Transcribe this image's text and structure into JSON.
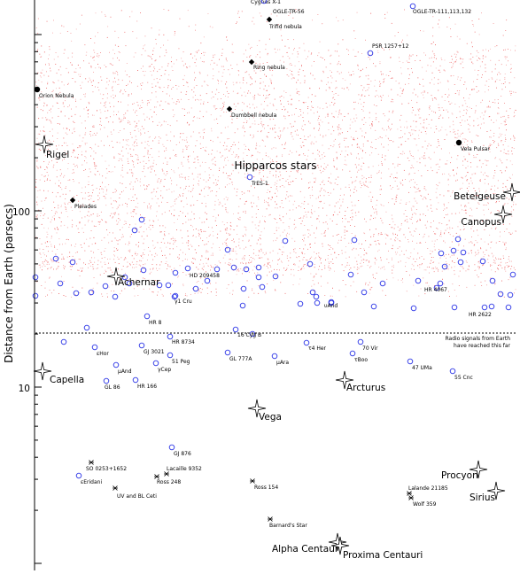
{
  "chart_data": {
    "type": "scatter",
    "ylabel": "Distance from Earth (parsecs)",
    "yscale": "log",
    "y_tick_labels": [
      "10",
      "100"
    ],
    "background_field_label": "Hipparcos stars",
    "threshold_note_line1": "Radio signals from Earth",
    "threshold_note_line2": "have reached this far",
    "threshold_value": 20,
    "objects": [
      {
        "name": "Cygnus X-1",
        "marker": "circle",
        "distance": 2000
      },
      {
        "name": "OGLE-TR-56",
        "marker": "circle",
        "distance": 1500
      },
      {
        "name": "OGLE-TR-111,113,132",
        "marker": "circle",
        "distance": 1500
      },
      {
        "name": "Trifid nebula",
        "marker": "diamond",
        "distance": 1600
      },
      {
        "name": "PSR 1257+12",
        "marker": "circle",
        "distance": 1000
      },
      {
        "name": "Ring nebula",
        "marker": "diamond",
        "distance": 700
      },
      {
        "name": "Orion Nebula",
        "marker": "dot",
        "distance": 450
      },
      {
        "name": "Dumbbell nebula",
        "marker": "diamond",
        "distance": 380
      },
      {
        "name": "Vela Pulsar",
        "marker": "dot",
        "distance": 250
      },
      {
        "name": "Rigel",
        "marker": "star",
        "distance": 250
      },
      {
        "name": "TrES-1",
        "marker": "circle",
        "distance": 150
      },
      {
        "name": "Pleiades",
        "marker": "diamond",
        "distance": 120
      },
      {
        "name": "Betelgeuse",
        "marker": "star",
        "distance": 130
      },
      {
        "name": "Canopus",
        "marker": "star",
        "distance": 95
      },
      {
        "name": "Achernar",
        "marker": "star",
        "distance": 40
      },
      {
        "name": "HD 209458",
        "marker": "circle",
        "distance": 46
      },
      {
        "name": "HR 4067",
        "marker": "circle",
        "distance": 36
      },
      {
        "name": "γ1 Cru",
        "marker": "circle",
        "distance": 30
      },
      {
        "name": "υAnd",
        "marker": "circle",
        "distance": 30
      },
      {
        "name": "HR 2622",
        "marker": "circle",
        "distance": 27
      },
      {
        "name": "HR 8",
        "marker": "circle",
        "distance": 24
      },
      {
        "name": "16 Cyg B",
        "marker": "circle",
        "distance": 21
      },
      {
        "name": "HR 8734",
        "marker": "circle",
        "distance": 19
      },
      {
        "name": "τ4 Her",
        "marker": "circle",
        "distance": 17
      },
      {
        "name": "70 Vir",
        "marker": "circle",
        "distance": 18
      },
      {
        "name": "εHor",
        "marker": "circle",
        "distance": 16
      },
      {
        "name": "GJ 3021",
        "marker": "circle",
        "distance": 17
      },
      {
        "name": "51 Peg",
        "marker": "circle",
        "distance": 15
      },
      {
        "name": "GL 777A",
        "marker": "circle",
        "distance": 16
      },
      {
        "name": "μAra",
        "marker": "circle",
        "distance": 15
      },
      {
        "name": "τBoo",
        "marker": "circle",
        "distance": 15
      },
      {
        "name": "μAnd",
        "marker": "circle",
        "distance": 13
      },
      {
        "name": "γCep",
        "marker": "circle",
        "distance": 13
      },
      {
        "name": "47 UMa",
        "marker": "circle",
        "distance": 14
      },
      {
        "name": "55 Cnc",
        "marker": "circle",
        "distance": 12.5
      },
      {
        "name": "Capella",
        "marker": "star",
        "distance": 13
      },
      {
        "name": "GL 86",
        "marker": "circle",
        "distance": 11
      },
      {
        "name": "HR 166",
        "marker": "circle",
        "distance": 11
      },
      {
        "name": "Arcturus",
        "marker": "star",
        "distance": 11
      },
      {
        "name": "Vega",
        "marker": "star",
        "distance": 7.8
      },
      {
        "name": "GJ 876",
        "marker": "circle",
        "distance": 4.7
      },
      {
        "name": "SO 0253+1652",
        "marker": "cross",
        "distance": 3.8
      },
      {
        "name": "εEridani",
        "marker": "circle",
        "distance": 3.2
      },
      {
        "name": "Lacaille 9352",
        "marker": "cross",
        "distance": 3.3
      },
      {
        "name": "Ross 248",
        "marker": "cross",
        "distance": 3.1
      },
      {
        "name": "UV and BL Ceti",
        "marker": "cross",
        "distance": 2.7
      },
      {
        "name": "Ross 154",
        "marker": "cross",
        "distance": 3
      },
      {
        "name": "Procyon",
        "marker": "star",
        "distance": 3.5
      },
      {
        "name": "Lalande 21185",
        "marker": "cross",
        "distance": 2.6
      },
      {
        "name": "Wolf 359",
        "marker": "cross",
        "distance": 2.4
      },
      {
        "name": "Sirius",
        "marker": "star",
        "distance": 2.6
      },
      {
        "name": "Barnard's Star",
        "marker": "cross",
        "distance": 1.8
      },
      {
        "name": "Alpha Centauri",
        "marker": "star",
        "distance": 1.3
      },
      {
        "name": "Proxima Centauri",
        "marker": "star",
        "distance": 1.3
      }
    ]
  }
}
